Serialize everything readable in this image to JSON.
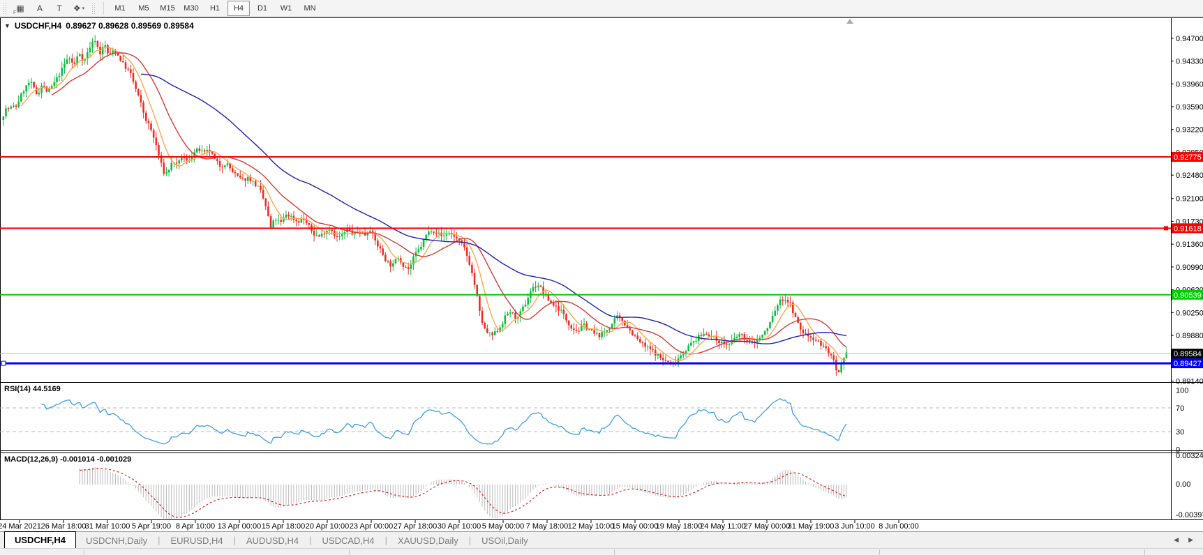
{
  "toolbar": {
    "icons": [
      {
        "id": "chart-frame-icon",
        "glyph": "▦",
        "sub": "F"
      },
      {
        "id": "text-label-icon",
        "glyph": "A",
        "sub": ""
      },
      {
        "id": "text-box-icon",
        "glyph": "T",
        "sub": ""
      },
      {
        "id": "shapes-dropdown-icon",
        "glyph": "❖",
        "sub": "",
        "caret": "▾"
      }
    ],
    "timeframes": [
      "M1",
      "M5",
      "M15",
      "M30",
      "H1",
      "H4",
      "D1",
      "W1",
      "MN"
    ],
    "active_timeframe": "H4"
  },
  "chart": {
    "dropdown_glyph": "▼",
    "symbol_title": "USDCHF,H4",
    "ohlc_text": "0.89627 0.89628 0.89569 0.89584"
  },
  "rsi": {
    "label": "RSI(14) 44.5169",
    "axis_labels": [
      100,
      70,
      30,
      0
    ],
    "levels": [
      70,
      30
    ]
  },
  "macd": {
    "label": "MACD(12,26,9) -0.001014 -0.001029",
    "axis": {
      "top": "0.003241",
      "mid": "0.00",
      "bottom": "-0.00397"
    }
  },
  "colors": {
    "up": "#0bbf3c",
    "down": "#ea2e1f",
    "ma_fast": "#ffa64d",
    "ma_mid": "#d83a36",
    "ma_slow": "#1f1fb4",
    "rsi_line": "#3e9fe8",
    "macd_hist": "#b9b9b9",
    "macd_signal": "#e02020",
    "hline_red": "#ff0000",
    "hline_green": "#00ce00",
    "hline_blue": "#0000ff",
    "bid_line": "#bdbdbd",
    "badge_black": "#000000",
    "axis_text": "#000000"
  },
  "chart_data": {
    "type": "candlestick",
    "symbol": "USDCHF",
    "timeframe": "H4",
    "ohlc_current": {
      "open": "0.89627",
      "high": "0.89628",
      "low": "0.89569",
      "close": "0.89584"
    },
    "y_axis_ticks": [
      "0.94700",
      "0.94330",
      "0.93960",
      "0.93590",
      "0.93220",
      "0.92850",
      "0.92480",
      "0.92100",
      "0.91730",
      "0.91360",
      "0.90990",
      "0.90620",
      "0.90250",
      "0.89880",
      "0.89140"
    ],
    "x_axis_ticks": [
      "24 Mar 2021",
      "26 Mar 18:00",
      "31 Mar 10:00",
      "5 Apr 19:00",
      "8 Apr 10:00",
      "13 Apr 00:00",
      "15 Apr 18:00",
      "20 Apr 10:00",
      "23 Apr 00:00",
      "27 Apr 18:00",
      "30 Apr 10:00",
      "5 May 00:00",
      "7 May 18:00",
      "12 May 10:00",
      "15 May 00:00",
      "19 May 18:00",
      "24 May 11:00",
      "27 May 00:00",
      "31 May 19:00",
      "3 Jun 10:00",
      "8 Jun 00:00"
    ],
    "horizontal_lines": [
      {
        "price": 0.92775,
        "label": "0.92775",
        "color_key": "hline_red",
        "width": 2,
        "handle": "none"
      },
      {
        "price": 0.91618,
        "label": "0.91618",
        "color_key": "hline_red",
        "width": 2,
        "handle": "right"
      },
      {
        "price": 0.90539,
        "label": "0.90539",
        "color_key": "hline_green",
        "width": 2,
        "handle": "none"
      },
      {
        "price": 0.89427,
        "label": "0.89427",
        "color_key": "hline_blue",
        "width": 3,
        "handle": "left"
      }
    ],
    "bid_price": {
      "value": 0.89584,
      "label": "0.89584"
    },
    "moving_averages": [
      {
        "name": "fast",
        "period": 8,
        "color_key": "ma_fast"
      },
      {
        "name": "mid",
        "period": 20,
        "color_key": "ma_mid"
      },
      {
        "name": "slow",
        "period": 55,
        "color_key": "ma_slow"
      }
    ],
    "price_path_anchors": [
      [
        0,
        0.933
      ],
      [
        10,
        0.9355
      ],
      [
        25,
        0.936
      ],
      [
        35,
        0.9385
      ],
      [
        45,
        0.94
      ],
      [
        55,
        0.9378
      ],
      [
        62,
        0.9395
      ],
      [
        70,
        0.9382
      ],
      [
        80,
        0.9398
      ],
      [
        90,
        0.9418
      ],
      [
        100,
        0.944
      ],
      [
        108,
        0.9425
      ],
      [
        115,
        0.9448
      ],
      [
        122,
        0.9432
      ],
      [
        130,
        0.9455
      ],
      [
        138,
        0.9468
      ],
      [
        145,
        0.9445
      ],
      [
        152,
        0.946
      ],
      [
        158,
        0.944
      ],
      [
        165,
        0.9452
      ],
      [
        172,
        0.944
      ],
      [
        180,
        0.9425
      ],
      [
        188,
        0.9415
      ],
      [
        195,
        0.9392
      ],
      [
        202,
        0.937
      ],
      [
        210,
        0.934
      ],
      [
        218,
        0.9322
      ],
      [
        226,
        0.9295
      ],
      [
        232,
        0.9268
      ],
      [
        238,
        0.9248
      ],
      [
        244,
        0.9258
      ],
      [
        250,
        0.9272
      ],
      [
        256,
        0.9262
      ],
      [
        262,
        0.9278
      ],
      [
        270,
        0.927
      ],
      [
        278,
        0.9282
      ],
      [
        286,
        0.929
      ],
      [
        294,
        0.9283
      ],
      [
        302,
        0.9288
      ],
      [
        310,
        0.9272
      ],
      [
        318,
        0.9262
      ],
      [
        326,
        0.9268
      ],
      [
        334,
        0.9255
      ],
      [
        342,
        0.9245
      ],
      [
        350,
        0.924
      ],
      [
        358,
        0.9244
      ],
      [
        366,
        0.9235
      ],
      [
        374,
        0.9225
      ],
      [
        382,
        0.92
      ],
      [
        390,
        0.9162
      ],
      [
        396,
        0.9178
      ],
      [
        404,
        0.917
      ],
      [
        412,
        0.9185
      ],
      [
        420,
        0.918
      ],
      [
        428,
        0.9172
      ],
      [
        436,
        0.9178
      ],
      [
        444,
        0.9165
      ],
      [
        452,
        0.9152
      ],
      [
        460,
        0.9148
      ],
      [
        468,
        0.9158
      ],
      [
        476,
        0.9162
      ],
      [
        484,
        0.9146
      ],
      [
        492,
        0.915
      ],
      [
        500,
        0.916
      ],
      [
        508,
        0.9152
      ],
      [
        516,
        0.9158
      ],
      [
        524,
        0.915
      ],
      [
        532,
        0.9162
      ],
      [
        540,
        0.914
      ],
      [
        548,
        0.9125
      ],
      [
        556,
        0.9108
      ],
      [
        564,
        0.91
      ],
      [
        572,
        0.9116
      ],
      [
        580,
        0.9102
      ],
      [
        588,
        0.9095
      ],
      [
        596,
        0.9118
      ],
      [
        604,
        0.913
      ],
      [
        612,
        0.915
      ],
      [
        620,
        0.916
      ],
      [
        628,
        0.9155
      ],
      [
        636,
        0.9148
      ],
      [
        644,
        0.9155
      ],
      [
        652,
        0.915
      ],
      [
        660,
        0.914
      ],
      [
        668,
        0.9128
      ],
      [
        676,
        0.91
      ],
      [
        684,
        0.906
      ],
      [
        690,
        0.902
      ],
      [
        696,
        0.8998
      ],
      [
        702,
        0.899
      ],
      [
        708,
        0.8988
      ],
      [
        714,
        0.8995
      ],
      [
        720,
        0.9005
      ],
      [
        726,
        0.9018
      ],
      [
        732,
        0.9028
      ],
      [
        738,
        0.902
      ],
      [
        744,
        0.9015
      ],
      [
        750,
        0.903
      ],
      [
        756,
        0.9042
      ],
      [
        762,
        0.906
      ],
      [
        768,
        0.9068
      ],
      [
        774,
        0.907
      ],
      [
        780,
        0.9058
      ],
      [
        786,
        0.9048
      ],
      [
        792,
        0.904
      ],
      [
        798,
        0.9035
      ],
      [
        806,
        0.9028
      ],
      [
        814,
        0.9012
      ],
      [
        822,
        0.9
      ],
      [
        830,
        0.8995
      ],
      [
        838,
        0.9005
      ],
      [
        846,
        0.8998
      ],
      [
        854,
        0.899
      ],
      [
        862,
        0.8988
      ],
      [
        870,
        0.8995
      ],
      [
        878,
        0.9005
      ],
      [
        886,
        0.9018
      ],
      [
        894,
        0.9012
      ],
      [
        902,
        0.9
      ],
      [
        910,
        0.8988
      ],
      [
        918,
        0.8978
      ],
      [
        926,
        0.897
      ],
      [
        934,
        0.8965
      ],
      [
        942,
        0.8958
      ],
      [
        950,
        0.895
      ],
      [
        958,
        0.8945
      ],
      [
        966,
        0.8942
      ],
      [
        974,
        0.8952
      ],
      [
        982,
        0.8962
      ],
      [
        990,
        0.8972
      ],
      [
        998,
        0.898
      ],
      [
        1006,
        0.8988
      ],
      [
        1014,
        0.8992
      ],
      [
        1022,
        0.8986
      ],
      [
        1030,
        0.898
      ],
      [
        1038,
        0.8975
      ],
      [
        1046,
        0.8972
      ],
      [
        1054,
        0.8982
      ],
      [
        1062,
        0.899
      ],
      [
        1070,
        0.8982
      ],
      [
        1078,
        0.8975
      ],
      [
        1086,
        0.898
      ],
      [
        1094,
        0.8988
      ],
      [
        1102,
        0.9
      ],
      [
        1110,
        0.9022
      ],
      [
        1118,
        0.9042
      ],
      [
        1126,
        0.9048
      ],
      [
        1134,
        0.904
      ],
      [
        1142,
        0.9015
      ],
      [
        1150,
        0.8995
      ],
      [
        1158,
        0.8988
      ],
      [
        1166,
        0.8985
      ],
      [
        1174,
        0.8978
      ],
      [
        1182,
        0.897
      ],
      [
        1190,
        0.896
      ],
      [
        1196,
        0.8948
      ],
      [
        1202,
        0.892
      ],
      [
        1208,
        0.894
      ],
      [
        1215,
        0.8958
      ]
    ]
  },
  "tabs": [
    {
      "label": "USDCHF,H4",
      "active": true
    },
    {
      "label": "USDCNH,Daily",
      "active": false
    },
    {
      "label": "EURUSD,H4",
      "active": false
    },
    {
      "label": "AUDUSD,H4",
      "active": false
    },
    {
      "label": "USDCAD,H4",
      "active": false
    },
    {
      "label": "XAUUSD,Daily",
      "active": false
    },
    {
      "label": "USOil,Daily",
      "active": false
    }
  ],
  "tab_arrows": {
    "left": "◀",
    "right": "▶"
  },
  "statusbar_dividers": [
    120,
    500,
    880,
    1260,
    1640
  ]
}
